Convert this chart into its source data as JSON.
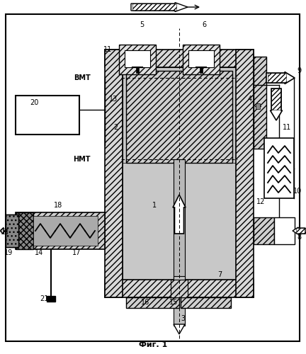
{
  "title": "Фиг. 1",
  "bg_color": "#ffffff",
  "fig_width": 4.32,
  "fig_height": 5.0,
  "dpi": 100
}
